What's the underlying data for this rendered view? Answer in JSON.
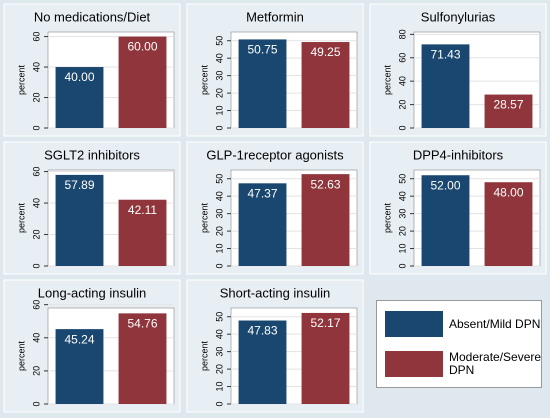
{
  "chart_data": [
    {
      "type": "bar",
      "title": "No medications/Diet",
      "ylabel": "percent",
      "values": [
        40,
        60
      ],
      "value_labels": [
        "40.00",
        "60.00"
      ],
      "ylim": [
        0,
        63
      ],
      "yticks": [
        0,
        20,
        40,
        60
      ]
    },
    {
      "type": "bar",
      "title": "Metformin",
      "ylabel": "percent",
      "values": [
        50.75,
        49.25
      ],
      "value_labels": [
        "50.75",
        "49.25"
      ],
      "ylim": [
        0,
        55
      ],
      "yticks": [
        0,
        10,
        20,
        30,
        40,
        50
      ]
    },
    {
      "type": "bar",
      "title": "Sulfonylurias",
      "ylabel": "percent",
      "values": [
        71.43,
        28.57
      ],
      "value_labels": [
        "71.43",
        "28.57"
      ],
      "ylim": [
        0,
        82
      ],
      "yticks": [
        0,
        20,
        40,
        60,
        80
      ]
    },
    {
      "type": "bar",
      "title": "SGLT2 inhibitors",
      "ylabel": "percent",
      "values": [
        57.89,
        42.11
      ],
      "value_labels": [
        "57.89",
        "42.11"
      ],
      "ylim": [
        0,
        61
      ],
      "yticks": [
        0,
        20,
        40,
        60
      ]
    },
    {
      "type": "bar",
      "title": "GLP-1receptor agonists",
      "ylabel": "percent",
      "values": [
        47.37,
        52.63
      ],
      "value_labels": [
        "47.37",
        "52.63"
      ],
      "ylim": [
        0,
        55
      ],
      "yticks": [
        0,
        10,
        20,
        30,
        40,
        50
      ]
    },
    {
      "type": "bar",
      "title": "DPP4-inhibitors",
      "ylabel": "percent",
      "values": [
        52,
        48
      ],
      "value_labels": [
        "52.00",
        "48.00"
      ],
      "ylim": [
        0,
        55
      ],
      "yticks": [
        0,
        10,
        20,
        30,
        40,
        50
      ]
    },
    {
      "type": "bar",
      "title": "Long-acting insulin",
      "ylabel": "percent",
      "values": [
        45.24,
        54.76
      ],
      "value_labels": [
        "45.24",
        "54.76"
      ],
      "ylim": [
        0,
        58
      ],
      "yticks": [
        0,
        20,
        40,
        60
      ]
    },
    {
      "type": "bar",
      "title": "Short-acting insulin",
      "ylabel": "percent",
      "values": [
        47.83,
        52.17
      ],
      "value_labels": [
        "47.83",
        "52.17"
      ],
      "ylim": [
        0,
        55
      ],
      "yticks": [
        0,
        10,
        20,
        30,
        40,
        50
      ]
    }
  ],
  "legend": [
    {
      "name": "Absent/Mild DPN",
      "color": "#1a476f"
    },
    {
      "name": "Moderate/Severe DPN",
      "color": "#90353b"
    }
  ]
}
